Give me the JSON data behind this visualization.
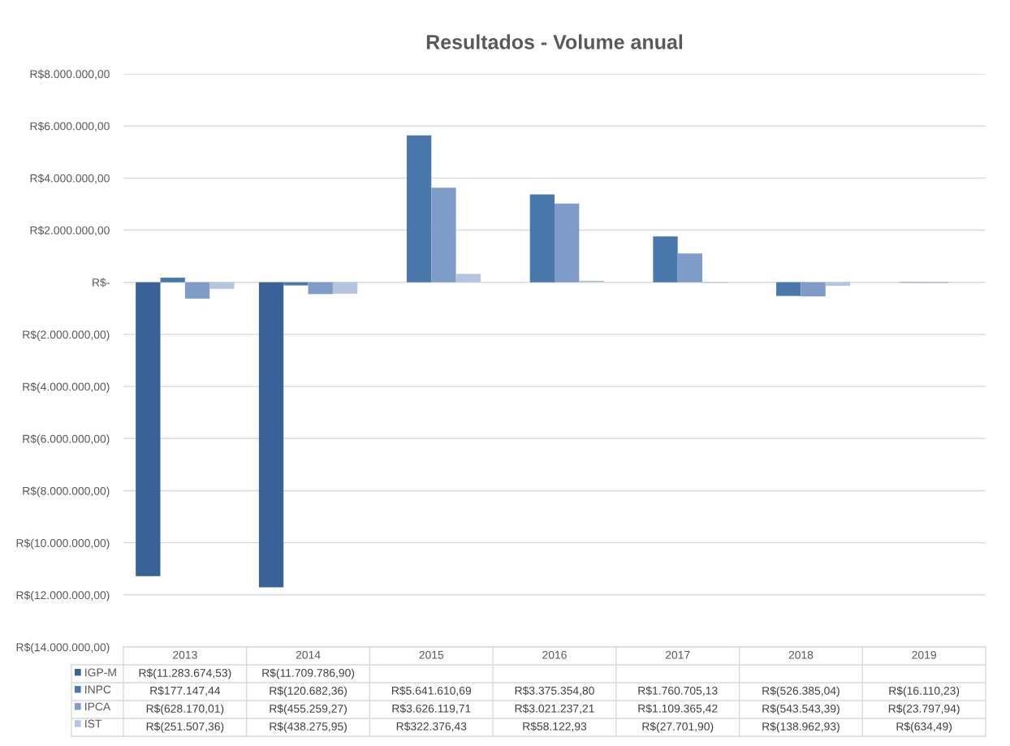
{
  "chart_data": {
    "type": "bar",
    "title": "Resultados - Volume anual",
    "categories": [
      "2013",
      "2014",
      "2015",
      "2016",
      "2017",
      "2018",
      "2019"
    ],
    "series": [
      {
        "name": "IGP-M",
        "color": "#3a6296",
        "values": [
          -11283674.53,
          -11709786.9,
          null,
          null,
          null,
          null,
          null
        ],
        "value_labels": [
          "R$(11.283.674,53)",
          "R$(11.709.786,90)",
          null,
          null,
          null,
          null,
          null
        ]
      },
      {
        "name": "INPC",
        "color": "#4a78ad",
        "values": [
          177147.44,
          -120682.36,
          5641610.69,
          3375354.8,
          1760705.13,
          -526385.04,
          -16110.23
        ],
        "value_labels": [
          "R$177.147,44",
          "R$(120.682,36)",
          "R$5.641.610,69",
          "R$3.375.354,80",
          "R$1.760.705,13",
          "R$(526.385,04)",
          "R$(16.110,23)"
        ]
      },
      {
        "name": "IPCA",
        "color": "#7f9cc8",
        "values": [
          -628170.01,
          -455259.27,
          3626119.71,
          3021237.21,
          1109365.42,
          -543543.39,
          -23797.94
        ],
        "value_labels": [
          "R$(628.170,01)",
          "R$(455.259,27)",
          "R$3.626.119,71",
          "R$3.021.237,21",
          "R$1.109.365,42",
          "R$(543.543,39)",
          "R$(23.797,94)"
        ]
      },
      {
        "name": "IST",
        "color": "#b4c3e0",
        "values": [
          -251507.36,
          -438275.95,
          322376.43,
          58122.93,
          -27701.9,
          -138962.93,
          -634.49
        ],
        "value_labels": [
          "R$(251.507,36)",
          "R$(438.275,95)",
          "R$322.376,43",
          "R$58.122,93",
          "R$(27.701,90)",
          "R$(138.962,93)",
          "R$(634,49)"
        ]
      }
    ],
    "ylim": [
      -14000000,
      8000000
    ],
    "yticks": [
      {
        "value": -14000000,
        "label": "R$(14.000.000,00)"
      },
      {
        "value": -12000000,
        "label": "R$(12.000.000,00)"
      },
      {
        "value": -10000000,
        "label": "R$(10.000.000,00)"
      },
      {
        "value": -8000000,
        "label": "R$(8.000.000,00)"
      },
      {
        "value": -6000000,
        "label": "R$(6.000.000,00)"
      },
      {
        "value": -4000000,
        "label": "R$(4.000.000,00)"
      },
      {
        "value": -2000000,
        "label": "R$(2.000.000,00)"
      },
      {
        "value": 0,
        "label": "R$-"
      },
      {
        "value": 2000000,
        "label": "R$2.000.000,00"
      },
      {
        "value": 4000000,
        "label": "R$4.000.000,00"
      },
      {
        "value": 6000000,
        "label": "R$6.000.000,00"
      },
      {
        "value": 8000000,
        "label": "R$8.000.000,00"
      }
    ],
    "grid": "y",
    "legend": "bottom left"
  }
}
